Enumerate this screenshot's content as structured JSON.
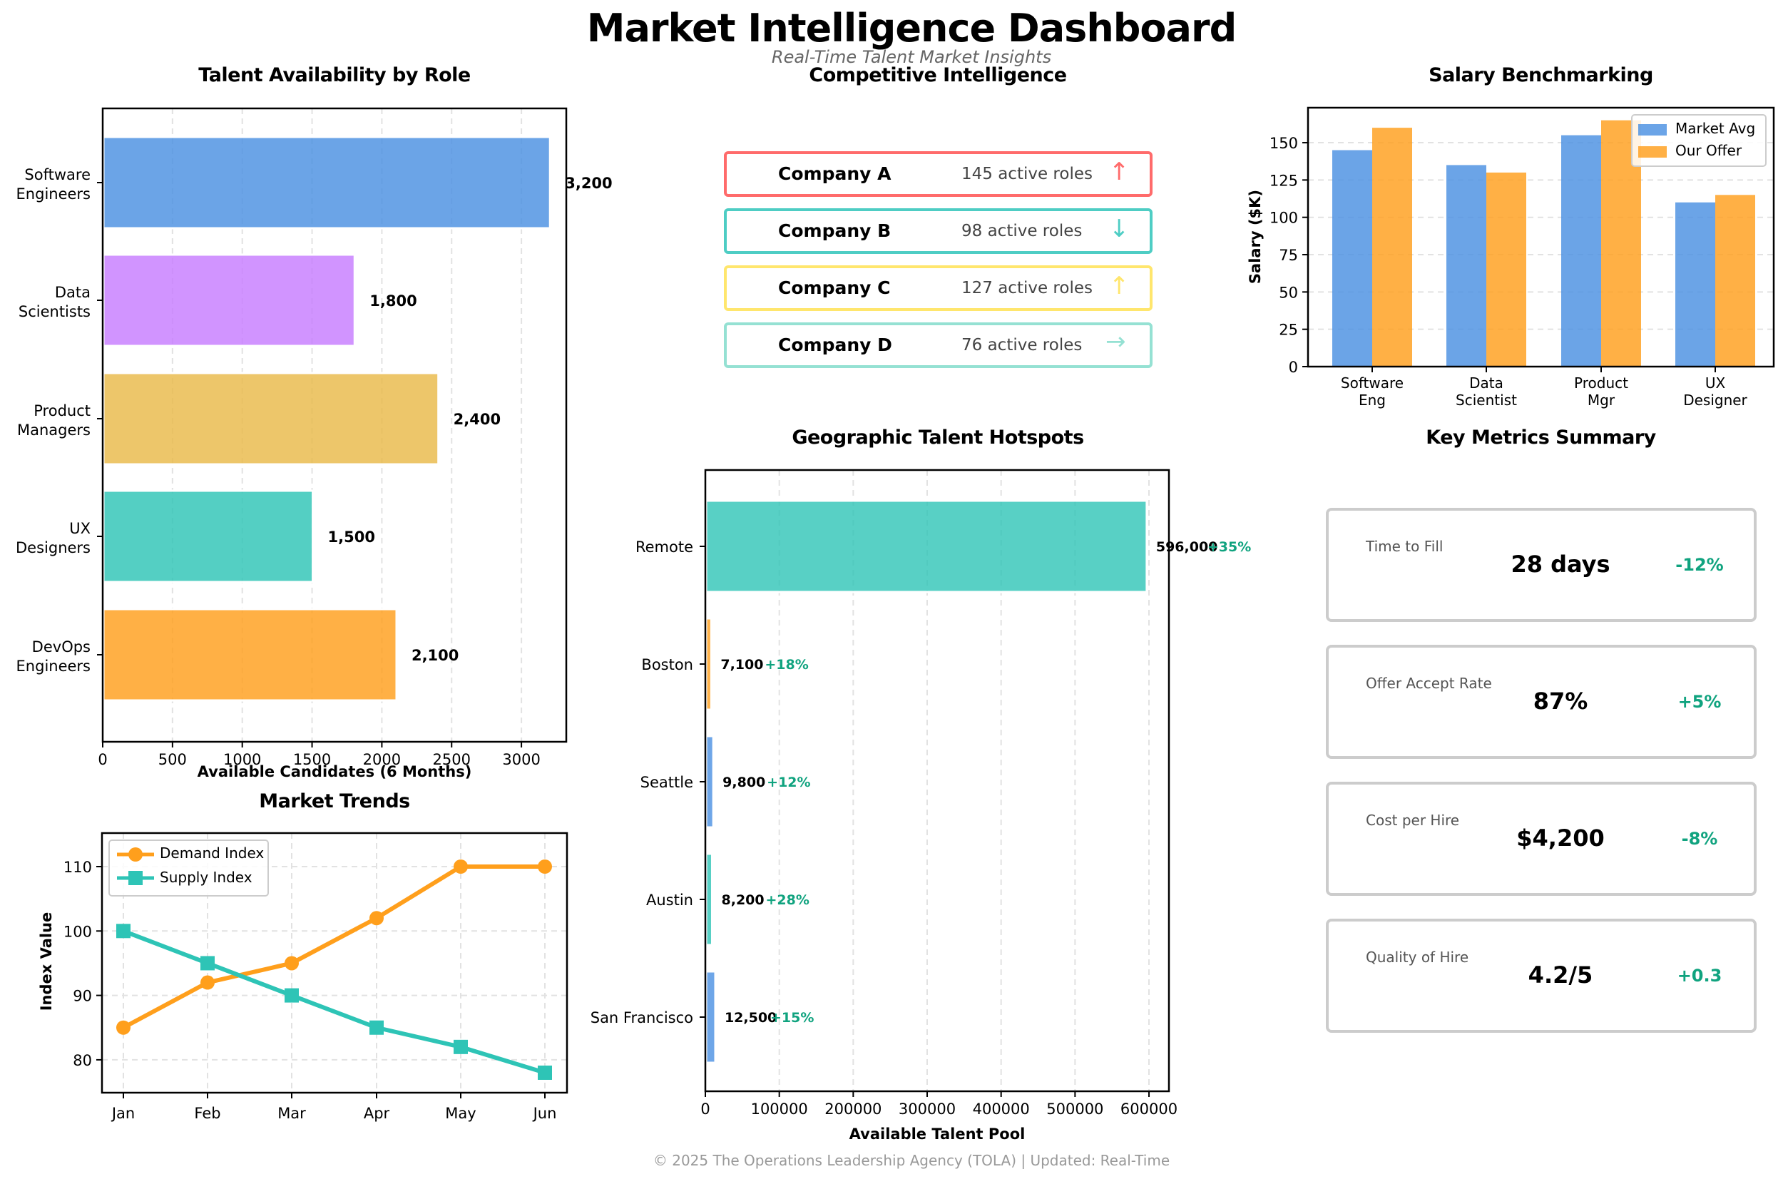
{
  "header": {
    "title": "Market Intelligence Dashboard",
    "subtitle": "Real-Time Talent Market Insights"
  },
  "talent_availability": {
    "title": "Talent Availability by Role",
    "xlabel": "Available Candidates (6 Months)",
    "xticks": [
      "0",
      "500",
      "1000",
      "1500",
      "2000",
      "2500",
      "3000"
    ],
    "roles": [
      {
        "label_line1": "Software",
        "label_line2": "Engineers",
        "value": 3200,
        "value_label": "3,200",
        "color": "#4a90e2"
      },
      {
        "label_line1": "Data",
        "label_line2": "Scientists",
        "value": 1800,
        "value_label": "1,800",
        "color": "#c77dff"
      },
      {
        "label_line1": "Product",
        "label_line2": "Managers",
        "value": 2400,
        "value_label": "2,400",
        "color": "#e9b949"
      },
      {
        "label_line1": "UX",
        "label_line2": "Designers",
        "value": 1500,
        "value_label": "1,500",
        "color": "#2ec4b6"
      },
      {
        "label_line1": "DevOps",
        "label_line2": "Engineers",
        "value": 2100,
        "value_label": "2,100",
        "color": "#ff9f1c"
      }
    ]
  },
  "competitive_intelligence": {
    "title": "Competitive Intelligence",
    "companies": [
      {
        "name": "Company A",
        "roles": "145 active roles",
        "trend_icon": "↑",
        "trend": "up",
        "color": "#ff6b6b"
      },
      {
        "name": "Company B",
        "roles": "98 active roles",
        "trend_icon": "↓",
        "trend": "down",
        "color": "#4ecdc4"
      },
      {
        "name": "Company C",
        "roles": "127 active roles",
        "trend_icon": "↑",
        "trend": "up",
        "color": "#ffe66d"
      },
      {
        "name": "Company D",
        "roles": "76 active roles",
        "trend_icon": "→",
        "trend": "flat",
        "color": "#95e1d3"
      }
    ]
  },
  "salary_benchmarking": {
    "title": "Salary Benchmarking",
    "ylabel": "Salary ($K)",
    "yticks": [
      "0",
      "25",
      "50",
      "75",
      "100",
      "125",
      "150"
    ],
    "legend": {
      "market_avg": "Market Avg",
      "our_offer": "Our Offer"
    },
    "groups": [
      {
        "line1": "Software",
        "line2": "Eng",
        "market_avg": 145,
        "our_offer": 160
      },
      {
        "line1": "Data",
        "line2": "Scientist",
        "market_avg": 135,
        "our_offer": 130
      },
      {
        "line1": "Product",
        "line2": "Mgr",
        "market_avg": 155,
        "our_offer": 165
      },
      {
        "line1": "UX",
        "line2": "Designer",
        "market_avg": 110,
        "our_offer": 115
      }
    ]
  },
  "geographic_hotspots": {
    "title": "Geographic Talent Hotspots",
    "xlabel": "Available Talent Pool",
    "xticks": [
      "0",
      "100000",
      "200000",
      "300000",
      "400000",
      "500000",
      "600000"
    ],
    "locations": [
      {
        "name": "Remote",
        "value": 596000,
        "value_label": "596,000",
        "growth": "+35%",
        "color": "#2ec4b6"
      },
      {
        "name": "Boston",
        "value": 7100,
        "value_label": "7,100",
        "growth": "+18%",
        "color": "#ff9f1c"
      },
      {
        "name": "Seattle",
        "value": 9800,
        "value_label": "9,800",
        "growth": "+12%",
        "color": "#4a90e2"
      },
      {
        "name": "Austin",
        "value": 8200,
        "value_label": "8,200",
        "growth": "+28%",
        "color": "#2ec4b6"
      },
      {
        "name": "San Francisco",
        "value": 12500,
        "value_label": "12,500",
        "growth": "+15%",
        "color": "#4a90e2"
      }
    ]
  },
  "market_trends": {
    "title": "Market Trends",
    "ylabel": "Index Value",
    "yticks": [
      "80",
      "90",
      "100",
      "110"
    ],
    "months": [
      "Jan",
      "Feb",
      "Mar",
      "Apr",
      "May",
      "Jun"
    ],
    "legend": {
      "demand": "Demand Index",
      "supply": "Supply Index"
    }
  },
  "key_metrics": {
    "title": "Key Metrics Summary",
    "metrics": [
      {
        "label": "Time to Fill",
        "value": "28 days",
        "change": "-12%"
      },
      {
        "label": "Offer Accept Rate",
        "value": "87%",
        "change": "+5%"
      },
      {
        "label": "Cost per Hire",
        "value": "$4,200",
        "change": "-8%"
      },
      {
        "label": "Quality of Hire",
        "value": "4.2/5",
        "change": "+0.3"
      }
    ]
  },
  "footer": {
    "text": "© 2025 The Operations Leadership Agency (TOLA) | Updated: Real-Time"
  },
  "chart_data": [
    {
      "type": "bar",
      "orientation": "horizontal",
      "title": "Talent Availability by Role",
      "categories": [
        "Software Engineers",
        "Data Scientists",
        "Product Managers",
        "UX Designers",
        "DevOps Engineers"
      ],
      "values": [
        3200,
        1800,
        2400,
        1500,
        2100
      ],
      "xlabel": "Available Candidates (6 Months)",
      "ylabel": "",
      "xlim": [
        0,
        3350
      ],
      "grid": "x dashed"
    },
    {
      "type": "bar",
      "title": "Salary Benchmarking",
      "categories": [
        "Software Eng",
        "Data Scientist",
        "Product Mgr",
        "UX Designer"
      ],
      "series": [
        {
          "name": "Market Avg",
          "values": [
            145,
            135,
            155,
            110
          ],
          "color": "#4a90e2"
        },
        {
          "name": "Our Offer",
          "values": [
            160,
            130,
            165,
            115
          ],
          "color": "#ff9f1c"
        }
      ],
      "xlabel": "",
      "ylabel": "Salary ($K)",
      "ylim": [
        0,
        173
      ],
      "legend_position": "upper right",
      "grid": "y dashed"
    },
    {
      "type": "bar",
      "orientation": "horizontal",
      "title": "Geographic Talent Hotspots",
      "categories": [
        "Remote",
        "Boston",
        "Seattle",
        "Austin",
        "San Francisco"
      ],
      "values": [
        596000,
        7100,
        9800,
        8200,
        12500
      ],
      "annotations": [
        "+35%",
        "+18%",
        "+12%",
        "+28%",
        "+15%"
      ],
      "xlabel": "Available Talent Pool",
      "ylabel": "",
      "xlim": [
        0,
        626000
      ],
      "grid": "x dashed"
    },
    {
      "type": "line",
      "title": "Market Trends",
      "x": [
        "Jan",
        "Feb",
        "Mar",
        "Apr",
        "May",
        "Jun"
      ],
      "series": [
        {
          "name": "Demand Index",
          "values": [
            85,
            92,
            95,
            102,
            110,
            110
          ],
          "color": "#ff9f1c",
          "marker": "circle"
        },
        {
          "name": "Supply Index",
          "values": [
            100,
            95,
            90,
            85,
            82,
            78
          ],
          "color": "#2ec4b6",
          "marker": "square"
        }
      ],
      "xlabel": "",
      "ylabel": "Index Value",
      "ylim": [
        75,
        115
      ],
      "legend_position": "upper left",
      "grid": "both dashed"
    }
  ]
}
